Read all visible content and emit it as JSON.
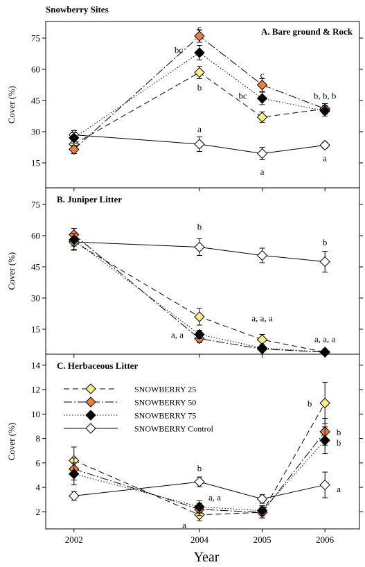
{
  "figure_title": "Snowberry Sites",
  "xlabel": "Year",
  "colors": {
    "s25": "#f7f08a",
    "s50": "#f07d3a",
    "s75": "#000000",
    "control": "#ffffff"
  },
  "chart_data": [
    {
      "type": "line",
      "title": "A.  Bare ground & Rock",
      "title_position": "top-right",
      "x": [
        2002,
        2004,
        2005,
        2006
      ],
      "xlim": [
        2001.55,
        2006.55
      ],
      "ylabel": "Cover (%)",
      "ylim": [
        3,
        83
      ],
      "yticks": [
        15,
        30,
        45,
        60,
        75
      ],
      "series": [
        {
          "name": "SNOWBERRY 25",
          "values": [
            24,
            58.5,
            37,
            41
          ],
          "errors": [
            2.5,
            3,
            2.5,
            2.5
          ]
        },
        {
          "name": "SNOWBERRY 50",
          "values": [
            21.5,
            76,
            52.5,
            41
          ],
          "errors": [
            2,
            3,
            3,
            2.5
          ]
        },
        {
          "name": "SNOWBERRY 75",
          "values": [
            27,
            68,
            46,
            40
          ],
          "errors": [
            2.5,
            3.5,
            3,
            2.5
          ]
        },
        {
          "name": "SNOWBERRY Control",
          "values": [
            28.5,
            24,
            19.5,
            23.5
          ],
          "errors": [
            2,
            3.5,
            3,
            1.5
          ]
        }
      ],
      "annotations": [
        {
          "x": 2004,
          "y": 31.5,
          "text": "a"
        },
        {
          "x": 2004,
          "y": 80,
          "text": "c"
        },
        {
          "x": 2004,
          "y": 69.5,
          "text": "bc",
          "dx": -30
        },
        {
          "x": 2004,
          "y": 51.5,
          "text": "b"
        },
        {
          "x": 2005,
          "y": 57.5,
          "text": "c"
        },
        {
          "x": 2005,
          "y": 47.5,
          "text": "bc",
          "dx": -28
        },
        {
          "x": 2005,
          "y": 11,
          "text": "a"
        },
        {
          "x": 2006,
          "y": 47.5,
          "text": "b, b, b"
        },
        {
          "x": 2006,
          "y": 17.5,
          "text": "a"
        }
      ]
    },
    {
      "type": "line",
      "title": "B.  Juniper Litter",
      "title_position": "top-left",
      "x": [
        2002,
        2004,
        2005,
        2006
      ],
      "xlim": [
        2001.55,
        2006.55
      ],
      "ylabel": "Cover (%)",
      "ylim": [
        3,
        83
      ],
      "yticks": [
        15,
        30,
        45,
        60,
        75
      ],
      "series": [
        {
          "name": "SNOWBERRY 25",
          "values": [
            57,
            21,
            10,
            4
          ],
          "errors": [
            3.5,
            4,
            2.5,
            1
          ]
        },
        {
          "name": "SNOWBERRY 50",
          "values": [
            60.5,
            10.5,
            5.5,
            4
          ],
          "errors": [
            3,
            2,
            1,
            1
          ]
        },
        {
          "name": "SNOWBERRY 75",
          "values": [
            58,
            12.5,
            6,
            4
          ],
          "errors": [
            3,
            2,
            1,
            1
          ]
        },
        {
          "name": "SNOWBERRY Control",
          "values": [
            57,
            54.5,
            50.5,
            47.5
          ],
          "errors": [
            4,
            4,
            3.5,
            5
          ]
        }
      ],
      "annotations": [
        {
          "x": 2004,
          "y": 64.5,
          "text": "b"
        },
        {
          "x": 2004,
          "y": 12.5,
          "text": "a, a",
          "dx": -32
        },
        {
          "x": 2005,
          "y": 20.5,
          "text": "a, a, a"
        },
        {
          "x": 2006,
          "y": 57,
          "text": "b"
        },
        {
          "x": 2006,
          "y": 10.5,
          "text": "a, a, a"
        }
      ]
    },
    {
      "type": "line",
      "title": "C.  Herbaceous Litter",
      "title_position": "top-left",
      "x": [
        2002,
        2004,
        2005,
        2006
      ],
      "xlim": [
        2001.55,
        2006.55
      ],
      "xticks": [
        "2002",
        "2004",
        "2005",
        "2006"
      ],
      "ylabel": "Cover (%)",
      "ylim": [
        0.6,
        14.9
      ],
      "yticks": [
        2,
        4,
        6,
        8,
        10,
        12,
        14
      ],
      "legend_position": "center-left",
      "series": [
        {
          "name": "SNOWBERRY 25",
          "values": [
            6.2,
            1.75,
            1.95,
            10.9
          ],
          "errors": [
            1.1,
            0.5,
            0.45,
            1.7
          ]
        },
        {
          "name": "SNOWBERRY 50",
          "values": [
            5.5,
            2.2,
            1.95,
            8.55
          ],
          "errors": [
            0.9,
            0.5,
            0.45,
            1.1
          ]
        },
        {
          "name": "SNOWBERRY 75",
          "values": [
            5.1,
            2.4,
            2.1,
            7.85
          ],
          "errors": [
            0.9,
            0.5,
            0.4,
            1.1
          ]
        },
        {
          "name": "SNOWBERRY Control",
          "values": [
            3.3,
            4.45,
            3.05,
            4.2
          ],
          "errors": [
            0.35,
            0.4,
            0.35,
            1.05
          ]
        }
      ],
      "annotations": [
        {
          "x": 2004,
          "y": 5.6,
          "text": "b"
        },
        {
          "x": 2004,
          "y": 3.2,
          "text": "a, a",
          "dx": 22
        },
        {
          "x": 2004,
          "y": 0.95,
          "text": "a",
          "dx": -22
        },
        {
          "x": 2006,
          "y": 10.9,
          "text": "b",
          "dx": -22
        },
        {
          "x": 2006,
          "y": 8.55,
          "text": "b",
          "dx": 20
        },
        {
          "x": 2006,
          "y": 7.7,
          "text": "b",
          "dx": 20
        },
        {
          "x": 2006,
          "y": 3.9,
          "text": "a",
          "dx": 20
        }
      ]
    }
  ]
}
